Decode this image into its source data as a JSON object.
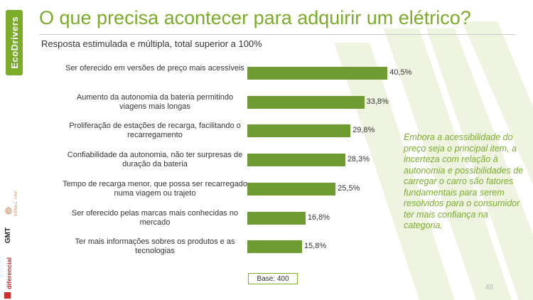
{
  "title": "O que precisa acontecer para adquirir um elétrico?",
  "subtitle": "Resposta estimulada e múltipla, total superior a 100%",
  "sidebar": {
    "logo_text": "EcoDrivers",
    "brand1_text": "PANEL TAP",
    "brand2_text": "GMT",
    "brand3_text": "diferencial"
  },
  "chart_data": {
    "type": "bar",
    "orientation": "horizontal",
    "categories": [
      "Ser oferecido em versões de preço mais acessíveis",
      "Aumento da autonomia da bateria permitindo viagens mais longas",
      "Proliferação de estações de recarga, facilitando o recarregamento",
      "Confiabilidade da autonomia, não ter surpresas de duração da bateria",
      "Tempo de recarga menor, que possa ser recarregado numa viagem ou trajeto",
      "Ser oferecido pelas marcas mais conhecidas no mercado",
      "Ter mais informações sobres os produtos e as tecnologias"
    ],
    "values": [
      40.5,
      33.8,
      29.8,
      28.3,
      25.5,
      16.8,
      15.8
    ],
    "value_labels": [
      "40,5%",
      "33,8%",
      "29,8%",
      "28,3%",
      "25,5%",
      "16,8%",
      "15,8%"
    ],
    "xlim": [
      0,
      100
    ],
    "bar_color": "#6e9b32",
    "grid": false,
    "base_label": "Base: 400"
  },
  "note": "Embora a acessibilidade do preço seja o principal item, a incerteza com relação à autonomia e possibilidades de carregar o carro são fatores fundamentais para serem resolvidos para o consumidor ter mais confiança na categoria.",
  "page_number": "48",
  "colors": {
    "accent": "#7aac2a",
    "bar": "#6e9b32",
    "stripes": "#eef4e0"
  }
}
